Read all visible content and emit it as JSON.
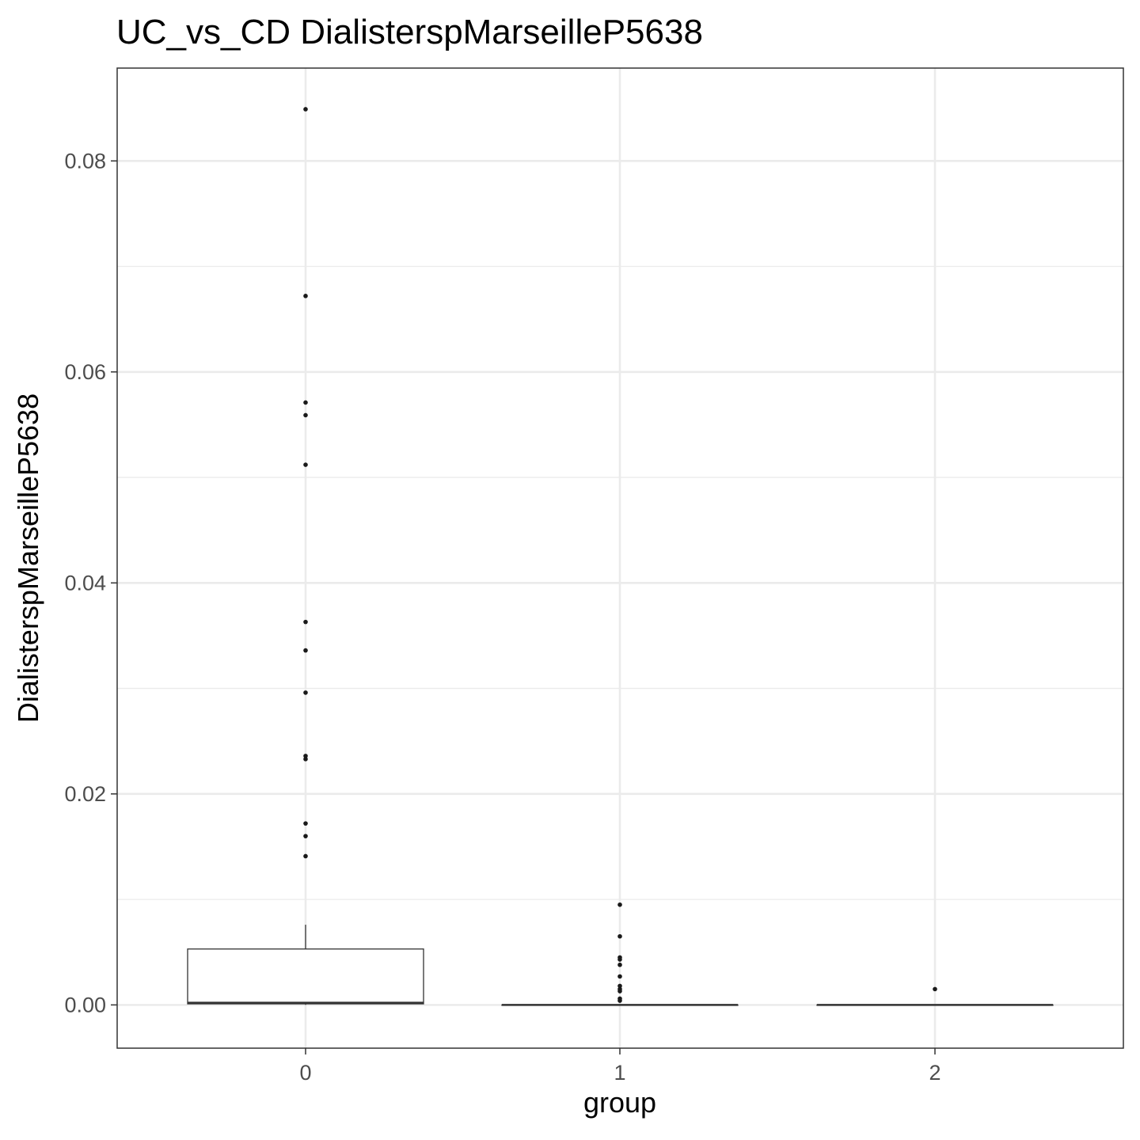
{
  "chart_data": {
    "type": "boxplot",
    "title": "UC_vs_CD DialisterspMarseilleP5638",
    "xlabel": "group",
    "ylabel": "DialisterspMarseilleP5638",
    "categories": [
      "0",
      "1",
      "2"
    ],
    "ylim": [
      -0.0041,
      0.0888
    ],
    "y_ticks": [
      0.0,
      0.02,
      0.04,
      0.06,
      0.08
    ],
    "y_tick_labels": [
      "0.00",
      "0.02",
      "0.04",
      "0.06",
      "0.08"
    ],
    "grid": true,
    "boxes": [
      {
        "group": "0",
        "q1": 0.0001,
        "median": 0.0002,
        "q3": 0.0053,
        "whisker_low": 0.0,
        "whisker_high": 0.0076,
        "outliers": [
          0.0849,
          0.0672,
          0.0571,
          0.0559,
          0.0512,
          0.0363,
          0.0336,
          0.0296,
          0.0236,
          0.0233,
          0.0172,
          0.016,
          0.0141
        ]
      },
      {
        "group": "1",
        "q1": 0.0,
        "median": 0.0,
        "q3": 0.0,
        "whisker_low": 0.0,
        "whisker_high": 0.0,
        "outliers": [
          0.0095,
          0.0065,
          0.0045,
          0.0043,
          0.0038,
          0.0027,
          0.0018,
          0.0015,
          0.0013,
          0.0006,
          0.0004
        ]
      },
      {
        "group": "2",
        "q1": 0.0,
        "median": 0.0,
        "q3": 0.0,
        "whisker_low": 0.0,
        "whisker_high": 0.0,
        "outliers": [
          0.0015
        ]
      }
    ],
    "colors": {
      "background": "#ffffff",
      "grid": "#ebebeb",
      "panel_border": "#333333",
      "box_line": "#333333",
      "outlier": "#1a1a1a",
      "tick_label": "#4d4d4d"
    }
  }
}
